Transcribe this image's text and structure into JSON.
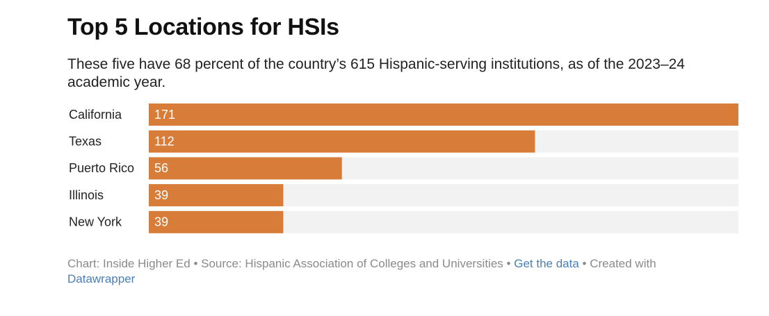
{
  "chart_data": {
    "type": "bar",
    "orientation": "horizontal",
    "title": "Top 5 Locations for HSIs",
    "subtitle": "These five have 68 percent of the country’s 615 Hispanic-serving institutions, as of the 2023–24 academic year.",
    "categories": [
      "California",
      "Texas",
      "Puerto Rico",
      "Illinois",
      "New York"
    ],
    "values": [
      171,
      112,
      56,
      39,
      39
    ],
    "color": "#d77d39",
    "footer": {
      "chart": "Chart: Inside Higher Ed",
      "separator": "•",
      "source": "Source: Hispanic Association of Colleges and Universities",
      "data_link": "Get the data",
      "created": "Created with",
      "tool": "Datawrapper"
    }
  }
}
